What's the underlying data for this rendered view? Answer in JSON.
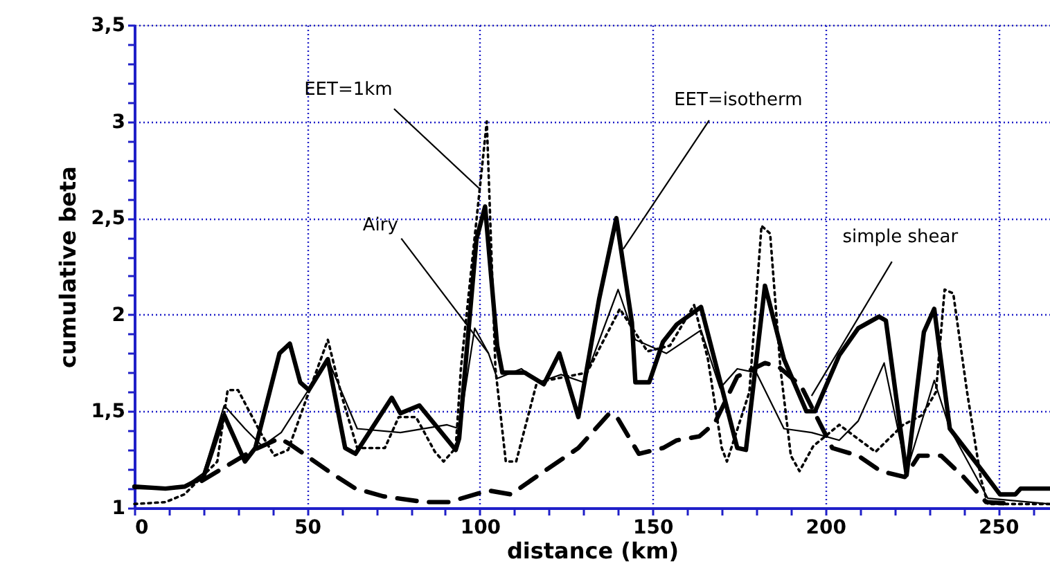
{
  "chart_data": {
    "type": "line",
    "xlabel": "distance (km)",
    "ylabel": "cumulative beta",
    "xlim": [
      0,
      265
    ],
    "ylim": [
      1,
      3.5
    ],
    "xticks": [
      0,
      {
        "value": 10,
        "label": null
      },
      {
        "value": 20,
        "label": null
      },
      {
        "value": 30,
        "label": null
      },
      {
        "value": 40,
        "label": null
      },
      50,
      {
        "value": 60,
        "label": null
      },
      {
        "value": 70,
        "label": null
      },
      {
        "value": 80,
        "label": null
      },
      {
        "value": 90,
        "label": null
      },
      100,
      {
        "value": 110,
        "label": null
      },
      {
        "value": 120,
        "label": null
      },
      {
        "value": 130,
        "label": null
      },
      {
        "value": 140,
        "label": null
      },
      150,
      {
        "value": 160,
        "label": null
      },
      {
        "value": 170,
        "label": null
      },
      {
        "value": 180,
        "label": null
      },
      {
        "value": 190,
        "label": null
      },
      200,
      {
        "value": 210,
        "label": null
      },
      {
        "value": 220,
        "label": null
      },
      {
        "value": 230,
        "label": null
      },
      {
        "value": 240,
        "label": null
      },
      250,
      {
        "value": 260,
        "label": null
      }
    ],
    "yticks": [
      1,
      {
        "value": 1.1,
        "label": null
      },
      {
        "value": 1.2,
        "label": null
      },
      {
        "value": 1.3,
        "label": null
      },
      {
        "value": 1.4,
        "label": null
      },
      {
        "value": 1.5,
        "label": "1,5"
      },
      {
        "value": 1.6,
        "label": null
      },
      {
        "value": 1.7,
        "label": null
      },
      {
        "value": 1.8,
        "label": null
      },
      {
        "value": 1.9,
        "label": null
      },
      2,
      {
        "value": 2.1,
        "label": null
      },
      {
        "value": 2.2,
        "label": null
      },
      {
        "value": 2.3,
        "label": null
      },
      {
        "value": 2.4,
        "label": null
      },
      {
        "value": 2.5,
        "label": "2,5"
      },
      {
        "value": 2.6,
        "label": null
      },
      {
        "value": 2.7,
        "label": null
      },
      {
        "value": 2.8,
        "label": null
      },
      {
        "value": 2.9,
        "label": null
      },
      3,
      {
        "value": 3.1,
        "label": null
      },
      {
        "value": 3.2,
        "label": null
      },
      {
        "value": 3.3,
        "label": null
      },
      {
        "value": 3.4,
        "label": null
      },
      {
        "value": 3.5,
        "label": "3,5"
      }
    ],
    "grid": true,
    "marker": "none",
    "series": [
      {
        "color": "#000000",
        "line_style": "solid",
        "x": [
          0,
          9,
          14.5,
          20,
          26,
          32,
          35,
          42,
          45,
          48,
          50.5,
          56,
          61,
          64,
          74.5,
          77,
          82.5,
          93,
          94,
          99,
          101.5,
          105,
          106.5,
          113,
          118.5,
          123,
          128.5,
          134.5,
          139.5,
          144,
          145,
          149,
          153,
          157,
          164,
          174.5,
          177,
          182.5,
          188,
          194.5,
          197,
          204,
          209.5,
          215.5,
          217.5,
          223.5,
          228.5,
          231.5,
          236,
          245.5,
          250.5,
          255,
          256.5,
          265
        ],
        "values": [
          1.11,
          1.1,
          1.11,
          1.16,
          1.48,
          1.24,
          1.31,
          1.8,
          1.85,
          1.65,
          1.61,
          1.77,
          1.31,
          1.28,
          1.57,
          1.49,
          1.53,
          1.3,
          1.36,
          2.39,
          2.56,
          1.84,
          1.7,
          1.7,
          1.64,
          1.8,
          1.47,
          2.08,
          2.5,
          1.96,
          1.65,
          1.65,
          1.86,
          1.95,
          2.04,
          1.31,
          1.3,
          2.15,
          1.77,
          1.5,
          1.5,
          1.79,
          1.93,
          1.99,
          1.97,
          1.17,
          1.91,
          2.03,
          1.41,
          1.19,
          1.07,
          1.07,
          1.1,
          1.1
        ]
      },
      {
        "color": "#000000",
        "line_style": "solid",
        "x": [
          0,
          9,
          14.5,
          20,
          26,
          32,
          37,
          42.5,
          50,
          56,
          64.5,
          77,
          90.5,
          94,
          98.5,
          102.5,
          105,
          112,
          117,
          123.5,
          130,
          140,
          145,
          154,
          164,
          169.5,
          174.5,
          180,
          188,
          196,
          204,
          209.5,
          217,
          223.5,
          231.5,
          236,
          247,
          265
        ],
        "values": [
          1.1,
          1.1,
          1.11,
          1.18,
          1.53,
          1.41,
          1.32,
          1.39,
          1.6,
          1.77,
          1.41,
          1.39,
          1.43,
          1.41,
          1.93,
          1.8,
          1.67,
          1.72,
          1.65,
          1.69,
          1.65,
          2.13,
          1.87,
          1.8,
          1.92,
          1.62,
          1.72,
          1.7,
          1.41,
          1.39,
          1.35,
          1.45,
          1.75,
          1.19,
          1.66,
          1.41,
          1.05,
          1.02
        ]
      },
      {
        "color": "#000000",
        "line_style": "dotted",
        "x": [
          0,
          9,
          14.5,
          24,
          27,
          30,
          36.5,
          40.5,
          44.5,
          50.5,
          56,
          60,
          64.5,
          72.5,
          76.5,
          81.5,
          87,
          89.5,
          93,
          94.5,
          102,
          104.5,
          107.5,
          110.5,
          116.5,
          131,
          140.5,
          148.5,
          155,
          162,
          166,
          170,
          171.5,
          178,
          181.5,
          184,
          187,
          190,
          192.5,
          196.5,
          204,
          214.5,
          222.5,
          228,
          232,
          234.5,
          237,
          241,
          245,
          247,
          265
        ],
        "values": [
          1.02,
          1.03,
          1.07,
          1.24,
          1.61,
          1.61,
          1.39,
          1.27,
          1.3,
          1.6,
          1.87,
          1.58,
          1.31,
          1.31,
          1.47,
          1.47,
          1.29,
          1.24,
          1.31,
          1.72,
          3.0,
          1.72,
          1.24,
          1.24,
          1.65,
          1.7,
          2.03,
          1.81,
          1.84,
          2.05,
          1.77,
          1.31,
          1.24,
          1.6,
          2.46,
          2.42,
          1.72,
          1.27,
          1.19,
          1.32,
          1.43,
          1.29,
          1.43,
          1.48,
          1.6,
          2.13,
          2.11,
          1.6,
          1.15,
          1.02,
          1.02
        ]
      },
      {
        "color": "#000000",
        "line_style": "dashed",
        "x": [
          19.5,
          34.5,
          42,
          45,
          57,
          64,
          72,
          84,
          91,
          102.5,
          109,
          117,
          128.5,
          137.5,
          140,
          146,
          153,
          157,
          163.5,
          168,
          174.5,
          182.5,
          186.5,
          193,
          202,
          209.5,
          216,
          223,
          227,
          233.5,
          240,
          246.5,
          255
        ],
        "values": [
          1.14,
          1.3,
          1.36,
          1.33,
          1.18,
          1.1,
          1.06,
          1.03,
          1.03,
          1.09,
          1.07,
          1.17,
          1.31,
          1.49,
          1.46,
          1.28,
          1.31,
          1.35,
          1.37,
          1.44,
          1.68,
          1.75,
          1.73,
          1.63,
          1.31,
          1.27,
          1.19,
          1.16,
          1.27,
          1.27,
          1.16,
          1.03,
          1.02
        ]
      }
    ],
    "annotations": [
      {
        "text": "EET=1km",
        "x": 100,
        "y": 2.65
      },
      {
        "text": "Airy",
        "x": 102.5,
        "y": 1.8
      },
      {
        "text": "EET=isotherm",
        "x": 141.5,
        "y": 2.34
      },
      {
        "text": "simple shear",
        "x": 196,
        "y": 1.58
      }
    ]
  }
}
